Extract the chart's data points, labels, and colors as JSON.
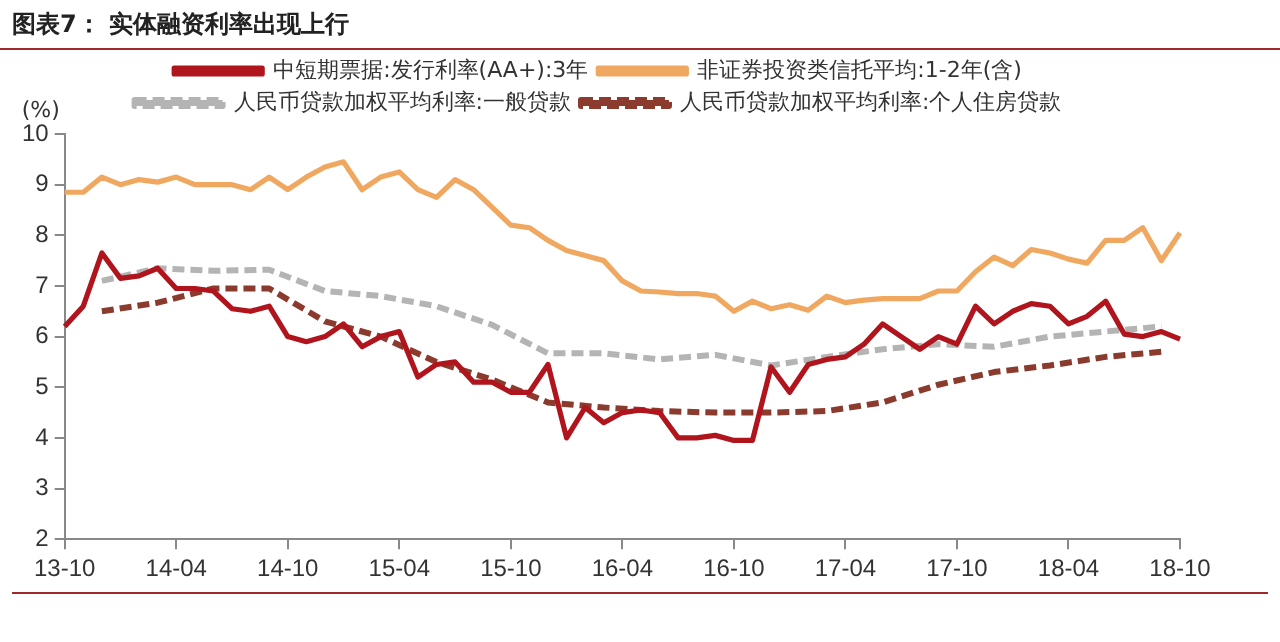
{
  "chart_data": {
    "type": "line",
    "title": "图表7： 实体融资利率出现上行",
    "ylabel": "(%)",
    "categories": [
      "13-10",
      null,
      null,
      null,
      null,
      null,
      "14-04",
      null,
      null,
      null,
      null,
      null,
      "14-10",
      null,
      null,
      null,
      null,
      null,
      "15-04",
      null,
      null,
      null,
      null,
      null,
      "15-10",
      null,
      null,
      null,
      null,
      null,
      "16-04",
      null,
      null,
      null,
      null,
      null,
      "16-10",
      null,
      null,
      null,
      null,
      null,
      "17-04",
      null,
      null,
      null,
      null,
      null,
      "17-10",
      null,
      null,
      null,
      null,
      null,
      "18-04",
      null,
      null,
      null,
      null,
      null,
      "18-10"
    ],
    "ylim": [
      2,
      10
    ],
    "yticks": [
      2,
      3,
      4,
      5,
      6,
      7,
      8,
      9,
      10
    ],
    "grid": false,
    "legend": "top",
    "marker": "none",
    "series": [
      {
        "name": "中短期票据:发行利率(AA+):3年",
        "color": "#b0141c",
        "line_style": "solid",
        "values": [
          6.2,
          6.6,
          7.65,
          7.15,
          7.2,
          7.35,
          6.95,
          6.95,
          6.9,
          6.55,
          6.5,
          6.6,
          6.0,
          5.9,
          6.0,
          6.25,
          5.8,
          6.0,
          6.1,
          5.2,
          5.45,
          5.5,
          5.1,
          5.1,
          4.9,
          4.9,
          5.45,
          4.0,
          4.6,
          4.3,
          4.5,
          4.55,
          4.5,
          4.0,
          4.0,
          4.05,
          3.95,
          3.95,
          5.4,
          4.9,
          5.45,
          5.55,
          5.6,
          5.85,
          6.25,
          6.0,
          5.75,
          6.0,
          5.85,
          6.6,
          6.25,
          6.5,
          6.65,
          6.6,
          6.25,
          6.4,
          6.7,
          6.05,
          6.0,
          6.1,
          5.95
        ]
      },
      {
        "name": "非证券投资类信托平均:1-2年(含)",
        "color": "#f0a860",
        "line_style": "solid",
        "values": [
          8.85,
          8.85,
          9.15,
          9.0,
          9.1,
          9.05,
          9.15,
          9.0,
          9.0,
          9.0,
          8.9,
          9.15,
          8.9,
          9.15,
          9.35,
          9.45,
          8.9,
          9.15,
          9.25,
          8.9,
          8.75,
          9.1,
          8.9,
          8.55,
          8.2,
          8.15,
          7.9,
          7.7,
          7.6,
          7.5,
          7.1,
          6.9,
          6.88,
          6.85,
          6.85,
          6.8,
          6.5,
          6.7,
          6.55,
          6.63,
          6.52,
          6.8,
          6.67,
          6.72,
          6.75,
          6.75,
          6.75,
          6.9,
          6.9,
          7.28,
          7.57,
          7.4,
          7.72,
          7.65,
          7.53,
          7.45,
          7.9,
          7.9,
          8.15,
          7.5,
          8.05
        ]
      },
      {
        "name": "人民币贷款加权平均利率:一般贷款",
        "color": "#b4b4b4",
        "line_style": "dashed",
        "values": [
          null,
          null,
          7.1,
          null,
          null,
          7.35,
          null,
          null,
          7.3,
          null,
          null,
          7.32,
          null,
          null,
          6.9,
          null,
          null,
          6.8,
          null,
          null,
          6.6,
          null,
          null,
          6.23,
          null,
          null,
          5.67,
          null,
          null,
          5.67,
          null,
          null,
          5.55,
          null,
          null,
          5.64,
          null,
          null,
          5.43,
          null,
          null,
          5.6,
          null,
          null,
          5.75,
          null,
          null,
          5.85,
          null,
          null,
          5.8,
          null,
          null,
          6.0,
          null,
          null,
          6.1,
          null,
          null,
          6.2,
          null
        ]
      },
      {
        "name": "人民币贷款加权平均利率:个人住房贷款",
        "color": "#8b3a2e",
        "line_style": "dashed",
        "values": [
          null,
          null,
          6.5,
          null,
          null,
          6.67,
          null,
          null,
          6.95,
          null,
          null,
          6.95,
          null,
          null,
          6.3,
          null,
          null,
          6.0,
          null,
          null,
          5.5,
          null,
          null,
          5.15,
          null,
          null,
          4.7,
          null,
          null,
          4.6,
          null,
          null,
          4.53,
          null,
          null,
          4.5,
          null,
          null,
          4.5,
          null,
          null,
          4.53,
          null,
          null,
          4.7,
          null,
          null,
          5.05,
          null,
          null,
          5.3,
          null,
          null,
          5.43,
          null,
          null,
          5.6,
          null,
          null,
          5.7,
          null
        ]
      }
    ]
  }
}
